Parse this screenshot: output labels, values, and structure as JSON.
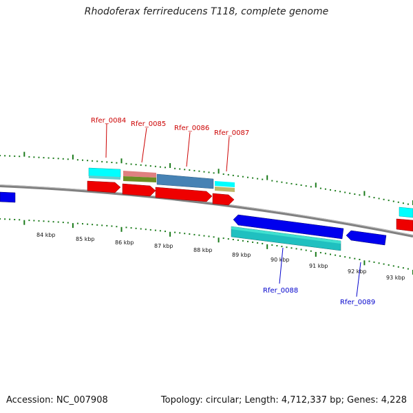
{
  "title": "Rhodoferax ferrireducens T118, complete genome",
  "accession": "Accession: NC_007908",
  "summary": "Topology: circular; Length: 4,712,337 bp; Genes: 4,228",
  "colors": {
    "forward_label": "#cc0000",
    "reverse_label": "#0000cc",
    "tick": "#1a7a1a",
    "backbone": "#808080"
  },
  "kbp_labels": [
    "84 kbp",
    "85 kbp",
    "86 kbp",
    "87 kbp",
    "88 kbp",
    "89 kbp",
    "90 kbp",
    "91 kbp",
    "92 kbp",
    "93 kbp"
  ],
  "genes": [
    {
      "name": "Rfer_0084",
      "strand": "forward"
    },
    {
      "name": "Rfer_0085",
      "strand": "forward"
    },
    {
      "name": "Rfer_0086",
      "strand": "forward"
    },
    {
      "name": "Rfer_0087",
      "strand": "forward"
    },
    {
      "name": "Rfer_0088",
      "strand": "reverse"
    },
    {
      "name": "Rfer_0089",
      "strand": "reverse"
    }
  ]
}
